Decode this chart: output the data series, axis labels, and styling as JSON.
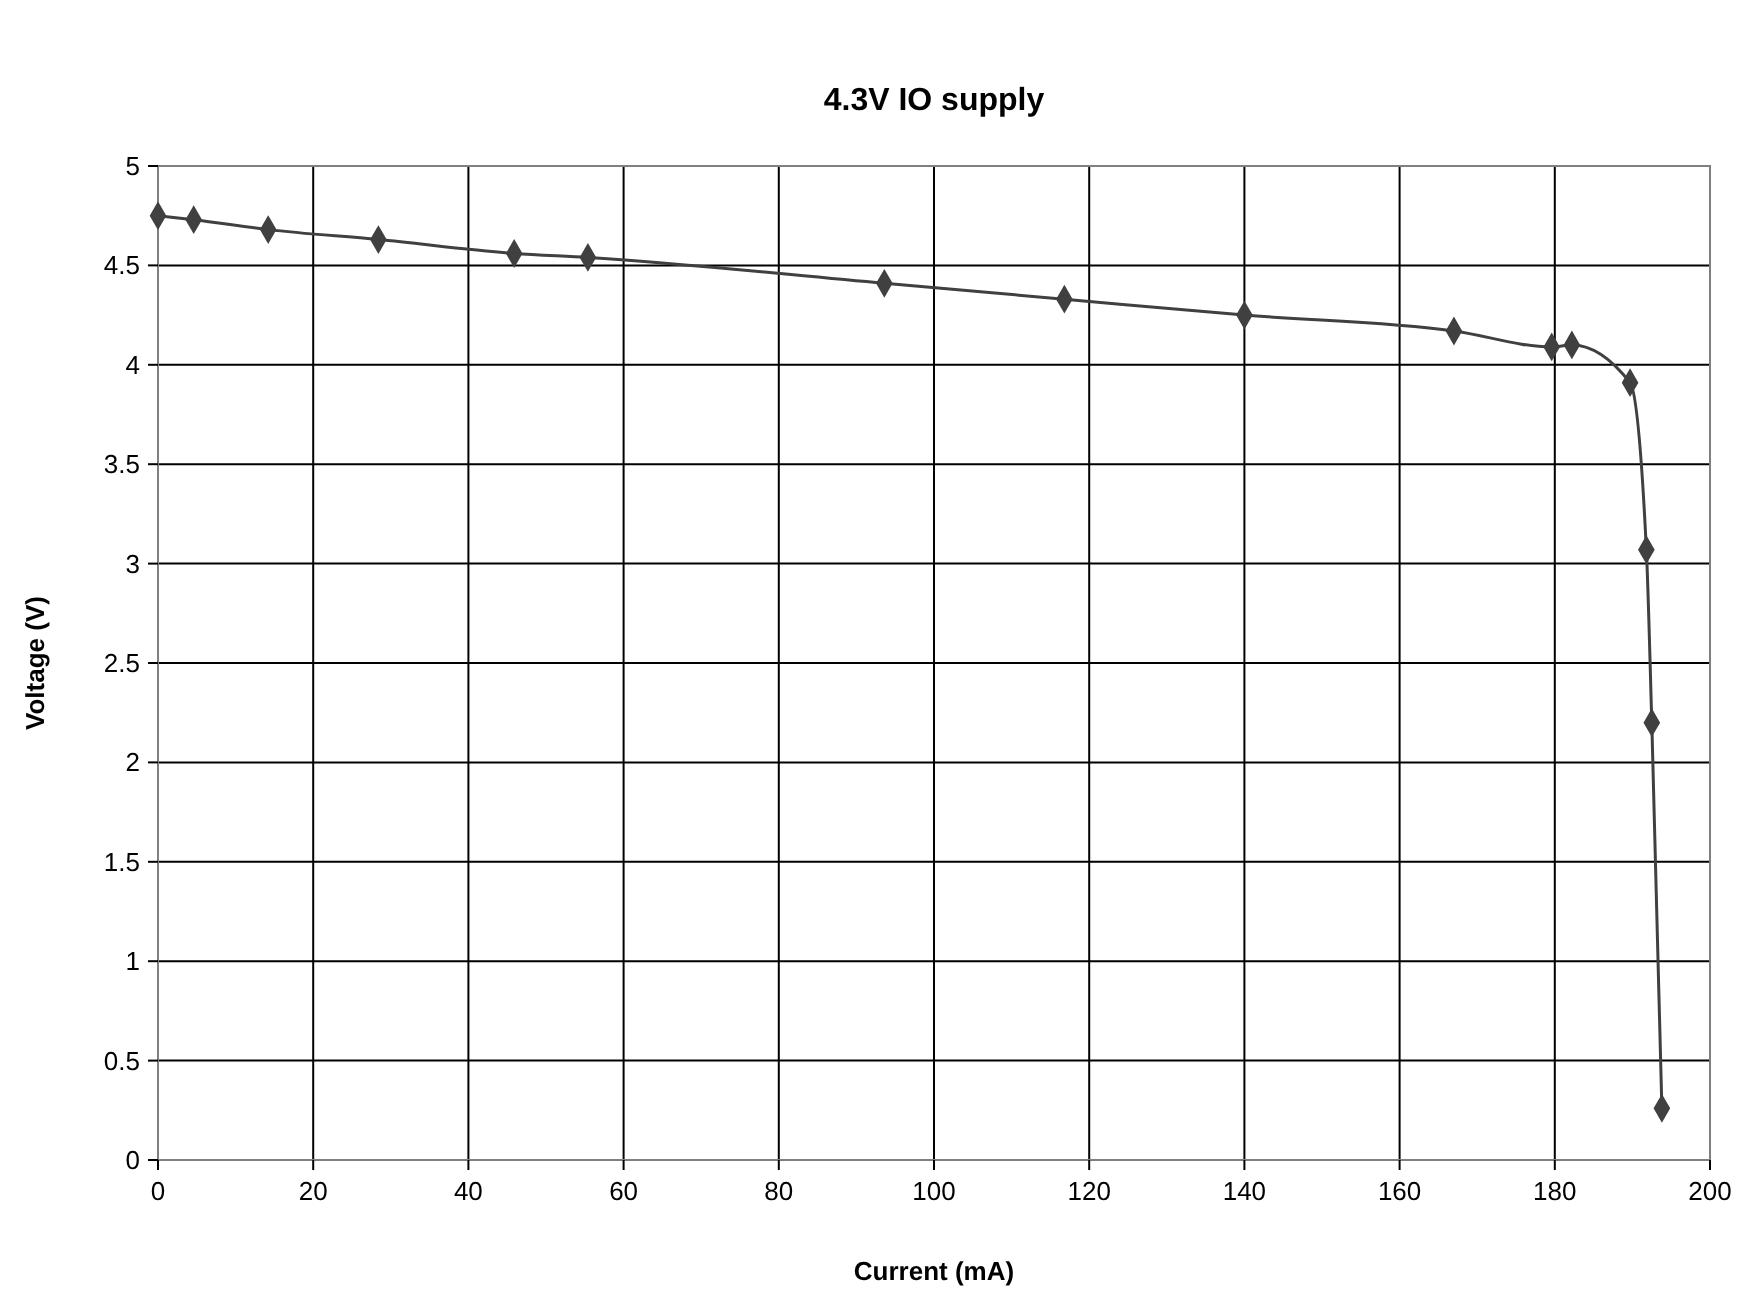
{
  "chart_data": {
    "type": "line",
    "title": "4.3V IO supply",
    "xlabel": "Current (mA)",
    "ylabel": "Voltage (V)",
    "xlim": [
      0,
      200
    ],
    "xticks": [
      0,
      20,
      40,
      60,
      80,
      100,
      120,
      140,
      160,
      180,
      200
    ],
    "ylim": [
      0,
      5
    ],
    "yticks": [
      0,
      0.5,
      1,
      1.5,
      2,
      2.5,
      3,
      3.5,
      4,
      4.5,
      5
    ],
    "grid": true,
    "marker": "diamond",
    "line_style": "solid",
    "series": [
      {
        "color": "#404040",
        "x": [
          0,
          4.6,
          14.2,
          28.4,
          45.9,
          55.4,
          93.6,
          116.8,
          140,
          167,
          179.6,
          182.2,
          189.7,
          191.8,
          192.5,
          193.8
        ],
        "values": [
          4.75,
          4.73,
          4.68,
          4.63,
          4.56,
          4.54,
          4.41,
          4.33,
          4.25,
          4.17,
          4.09,
          4.1,
          3.91,
          3.07,
          2.2,
          0.26
        ]
      }
    ]
  }
}
